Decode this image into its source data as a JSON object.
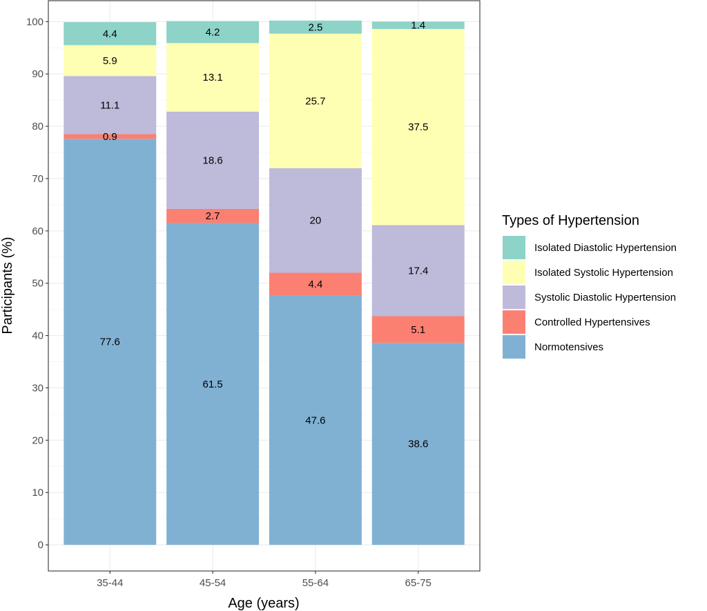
{
  "chart_data": {
    "type": "bar",
    "stacked": true,
    "orientation": "vertical",
    "xlabel": "Age (years)",
    "ylabel": "Participants (%)",
    "ylim": [
      -5,
      104
    ],
    "yticks": [
      0,
      10,
      20,
      30,
      40,
      50,
      60,
      70,
      80,
      90,
      100
    ],
    "grid": true,
    "legend_position": "right",
    "categories": [
      "35-44",
      "45-54",
      "55-64",
      "65-75"
    ],
    "series": [
      {
        "name": "Normotensives",
        "color": "#80b1d3",
        "values": [
          77.6,
          61.5,
          47.6,
          38.6
        ],
        "labels": [
          "77.6",
          "61.5",
          "47.6",
          "38.6"
        ]
      },
      {
        "name": "Controlled Hypertensives",
        "color": "#fb8072",
        "values": [
          0.9,
          2.7,
          4.4,
          5.1
        ],
        "labels": [
          "0.9",
          "2.7",
          "4.4",
          "5.1"
        ]
      },
      {
        "name": "Systolic Diastolic Hypertension",
        "color": "#bebada",
        "values": [
          11.1,
          18.6,
          20,
          17.4
        ],
        "labels": [
          "11.1",
          "18.6",
          "20",
          "17.4"
        ]
      },
      {
        "name": "Isolated Systolic Hypertension",
        "color": "#ffffb3",
        "values": [
          5.9,
          13.1,
          25.7,
          37.5
        ],
        "labels": [
          "5.9",
          "13.1",
          "25.7",
          "37.5"
        ]
      },
      {
        "name": "Isolated Diastolic Hypertension",
        "color": "#8dd3c7",
        "values": [
          4.4,
          4.2,
          2.5,
          1.4
        ],
        "labels": [
          "4.4",
          "4.2",
          "2.5",
          "1.4"
        ]
      }
    ],
    "legend": {
      "title": "Types of Hypertension",
      "order": [
        "Isolated Diastolic Hypertension",
        "Isolated Systolic Hypertension",
        "Systolic Diastolic Hypertension",
        "Controlled Hypertensives",
        "Normotensives"
      ]
    }
  }
}
